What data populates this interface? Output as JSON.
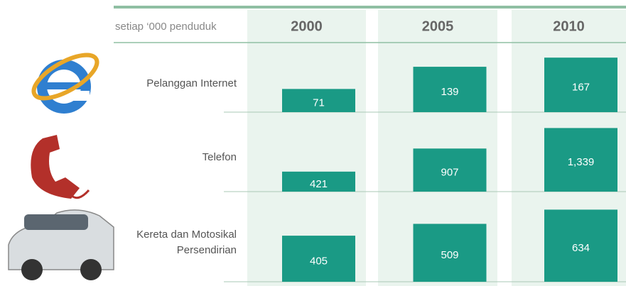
{
  "chart_data": {
    "type": "bar",
    "subtitle": "setiap ‘000 penduduk",
    "categories": [
      "2000",
      "2005",
      "2010"
    ],
    "color": "#1a9a85",
    "series": [
      {
        "name": "Pelanggan Internet",
        "values": [
          71,
          139,
          167
        ]
      },
      {
        "name": "Telefon",
        "values": [
          421,
          907,
          1339
        ],
        "value_labels": [
          "421",
          "907",
          "1,339"
        ]
      },
      {
        "name": "Kereta dan Motosikal\nPersendirian",
        "values": [
          405,
          509,
          634
        ]
      }
    ]
  }
}
